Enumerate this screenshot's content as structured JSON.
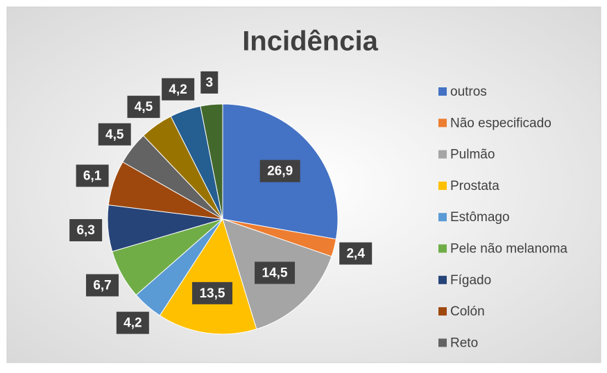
{
  "chart_data": {
    "type": "pie",
    "title": "Incidência",
    "categories": [
      "outros",
      "Não especificado",
      "Pulmão",
      "Prostata",
      "Estômago",
      "Pele não melanoma",
      "Fígado",
      "Colón",
      "Reto",
      null,
      null,
      null
    ],
    "values": [
      26.9,
      2.4,
      14.5,
      13.5,
      4.2,
      6.7,
      6.3,
      6.1,
      4.5,
      4.5,
      4.2,
      3
    ],
    "value_labels": [
      "26,9",
      "2,4",
      "14,5",
      "13,5",
      "4,2",
      "6,7",
      "6,3",
      "6,1",
      "4,5",
      "4,5",
      "4,2",
      "3"
    ],
    "colors": [
      "#4472c4",
      "#ed7d31",
      "#a5a5a5",
      "#ffc000",
      "#5b9bd5",
      "#70ad47",
      "#264478",
      "#9e480e",
      "#636363",
      "#997300",
      "#255e91",
      "#43682b"
    ],
    "legend": "right"
  }
}
